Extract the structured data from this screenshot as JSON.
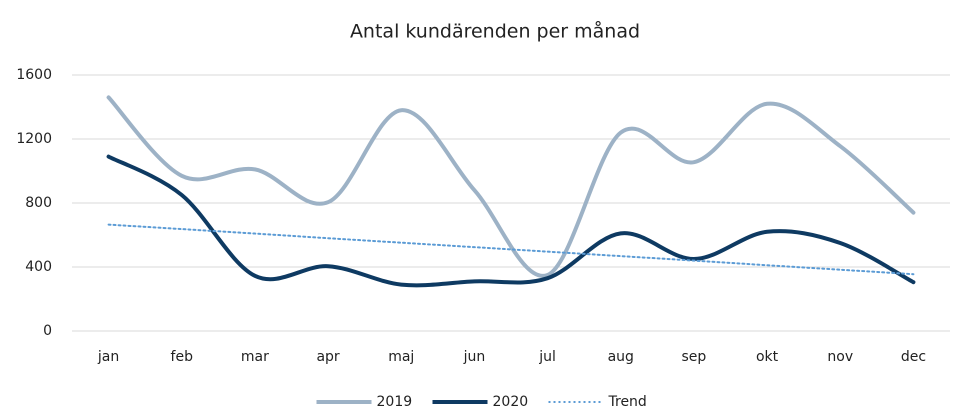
{
  "chart_data": {
    "type": "line",
    "title": "Antal kundärenden per månad",
    "categories": [
      "jan",
      "feb",
      "mar",
      "apr",
      "maj",
      "jun",
      "jul",
      "aug",
      "sep",
      "okt",
      "nov",
      "dec"
    ],
    "series": [
      {
        "name": "2019",
        "color": "#9db2c6",
        "style": "solid",
        "values": [
          1460,
          970,
          1010,
          805,
          1380,
          880,
          350,
          1240,
          1055,
          1420,
          1155,
          740
        ]
      },
      {
        "name": "2020",
        "color": "#0e3a62",
        "style": "solid",
        "values": [
          1090,
          850,
          345,
          405,
          290,
          310,
          330,
          610,
          450,
          620,
          550,
          305
        ]
      },
      {
        "name": "Trend",
        "color": "#5b9bd5",
        "style": "dotted",
        "values": [
          665,
          637,
          609,
          580,
          552,
          524,
          496,
          468,
          440,
          411,
          383,
          355
        ]
      }
    ],
    "ylim": [
      0,
      1600
    ],
    "yticks": [
      0,
      400,
      800,
      1200,
      1600
    ],
    "grid": true,
    "smooth": true,
    "legend": "bottom"
  }
}
